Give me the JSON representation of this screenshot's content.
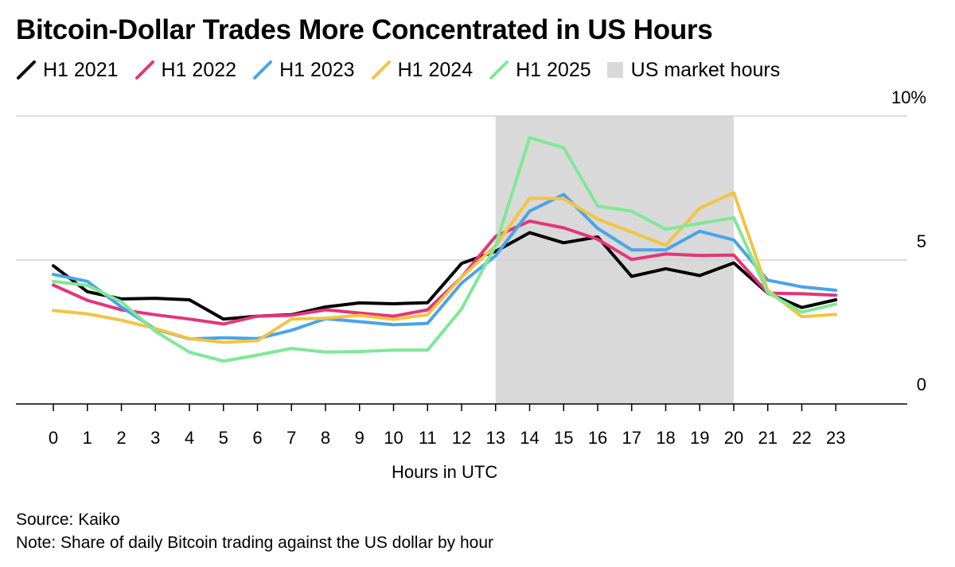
{
  "chart_data": {
    "type": "line",
    "title": "Bitcoin-Dollar Trades More Concentrated in US Hours",
    "xlabel": "Hours in UTC",
    "ylabel": "",
    "x": [
      0,
      1,
      2,
      3,
      4,
      5,
      6,
      7,
      8,
      9,
      10,
      11,
      12,
      13,
      14,
      15,
      16,
      17,
      18,
      19,
      20,
      21,
      22,
      23
    ],
    "xlim": [
      -1.1,
      25.1
    ],
    "ylim": [
      0,
      10
    ],
    "yticks": [
      0,
      5,
      10
    ],
    "ytick_labels": [
      "0",
      "5",
      "10%"
    ],
    "shaded_region": {
      "name": "US market hours",
      "x_start": 13,
      "x_end": 20,
      "color": "#d9d9d9"
    },
    "series": [
      {
        "name": "H1 2021",
        "color": "#000000",
        "values": [
          4.8,
          3.9,
          3.65,
          3.67,
          3.62,
          2.95,
          3.05,
          3.1,
          3.37,
          3.51,
          3.48,
          3.52,
          4.88,
          5.3,
          5.95,
          5.6,
          5.8,
          4.43,
          4.7,
          4.46,
          4.9,
          3.85,
          3.35,
          3.62
        ]
      },
      {
        "name": "H1 2022",
        "color": "#e4357a",
        "values": [
          4.13,
          3.6,
          3.27,
          3.1,
          2.95,
          2.78,
          3.05,
          3.08,
          3.27,
          3.16,
          3.05,
          3.27,
          4.4,
          5.82,
          6.35,
          6.12,
          5.72,
          5.02,
          5.21,
          5.16,
          5.17,
          3.85,
          3.83,
          3.78
        ]
      },
      {
        "name": "H1 2023",
        "color": "#4aa3e8",
        "values": [
          4.5,
          4.26,
          3.37,
          2.6,
          2.26,
          2.3,
          2.27,
          2.56,
          2.96,
          2.86,
          2.75,
          2.8,
          4.2,
          5.15,
          6.7,
          7.28,
          6.1,
          5.35,
          5.35,
          6.0,
          5.7,
          4.3,
          4.07,
          3.95
        ]
      },
      {
        "name": "H1 2024",
        "color": "#f1c443",
        "values": [
          3.25,
          3.13,
          2.91,
          2.62,
          2.27,
          2.14,
          2.2,
          2.95,
          2.98,
          3.08,
          2.94,
          3.1,
          4.4,
          5.5,
          7.15,
          7.13,
          6.42,
          5.97,
          5.51,
          6.8,
          7.34,
          3.95,
          3.03,
          3.11
        ]
      },
      {
        "name": "H1 2025",
        "color": "#7fe896",
        "values": [
          4.26,
          4.12,
          3.55,
          2.52,
          1.8,
          1.49,
          1.7,
          1.93,
          1.8,
          1.82,
          1.87,
          1.87,
          3.3,
          5.5,
          9.25,
          8.9,
          6.87,
          6.7,
          6.07,
          6.27,
          6.47,
          3.87,
          3.19,
          3.47
        ]
      }
    ]
  },
  "legend_box_label": "US market hours",
  "footer": {
    "source": "Source: Kaiko",
    "note": "Note: Share of daily Bitcoin trading against the US dollar by hour"
  }
}
